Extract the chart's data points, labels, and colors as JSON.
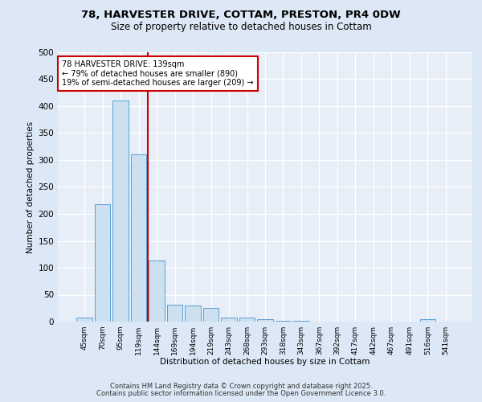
{
  "title_line1": "78, HARVESTER DRIVE, COTTAM, PRESTON, PR4 0DW",
  "title_line2": "Size of property relative to detached houses in Cottam",
  "xlabel": "Distribution of detached houses by size in Cottam",
  "ylabel": "Number of detached properties",
  "bar_labels": [
    "45sqm",
    "70sqm",
    "95sqm",
    "119sqm",
    "144sqm",
    "169sqm",
    "194sqm",
    "219sqm",
    "243sqm",
    "268sqm",
    "293sqm",
    "318sqm",
    "343sqm",
    "367sqm",
    "392sqm",
    "417sqm",
    "442sqm",
    "467sqm",
    "491sqm",
    "516sqm",
    "541sqm"
  ],
  "bar_values": [
    8,
    218,
    410,
    310,
    113,
    32,
    30,
    25,
    7,
    7,
    4,
    2,
    1,
    0,
    0,
    0,
    0,
    0,
    0,
    4,
    0
  ],
  "bar_color": "#cce0f0",
  "bar_edge_color": "#5a9fd4",
  "background_color": "#e8eef8",
  "grid_color": "#ffffff",
  "annotation_text": "78 HARVESTER DRIVE: 139sqm\n← 79% of detached houses are smaller (890)\n19% of semi-detached houses are larger (209) →",
  "annotation_box_color": "#ffffff",
  "annotation_box_edge_color": "#cc0000",
  "red_line_color": "#cc0000",
  "ylim": [
    0,
    500
  ],
  "yticks": [
    0,
    50,
    100,
    150,
    200,
    250,
    300,
    350,
    400,
    450,
    500
  ],
  "footer_line1": "Contains HM Land Registry data © Crown copyright and database right 2025.",
  "footer_line2": "Contains public sector information licensed under the Open Government Licence 3.0.",
  "fig_bg_color": "#dce8f5"
}
